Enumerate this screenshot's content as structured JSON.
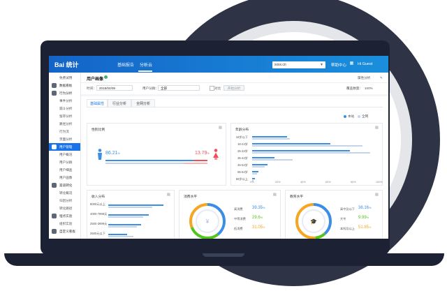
{
  "topbar": {
    "logo": "Bai 统计",
    "nav": [
      "基础报告",
      "分析云"
    ],
    "site_select": "xxxx.cn",
    "help": "帮助中心",
    "user": "Hi Guest"
  },
  "sidebar": {
    "items": [
      {
        "label": "免费试用",
        "group": false
      },
      {
        "label": "数据看板",
        "group": true
      },
      {
        "label": "行为分析",
        "group": true
      },
      {
        "label": "事件分析",
        "group": false
      },
      {
        "label": "漏斗分析",
        "group": false
      },
      {
        "label": "留存分析",
        "group": false
      },
      {
        "label": "路径分析",
        "group": false
      },
      {
        "label": "行为流",
        "group": false
      },
      {
        "label": "页面分析",
        "group": false
      },
      {
        "label": "用户管理",
        "group": true,
        "active": true
      },
      {
        "label": "用户概况",
        "group": false
      },
      {
        "label": "用户分群",
        "group": false
      },
      {
        "label": "用户细查",
        "group": false
      },
      {
        "label": "用户画像",
        "group": false
      },
      {
        "label": "渠道转化",
        "group": true
      },
      {
        "label": "转化概况",
        "group": false
      },
      {
        "label": "归因分析",
        "group": false
      },
      {
        "label": "转化路径",
        "group": false
      },
      {
        "label": "埋点实验",
        "group": true
      },
      {
        "label": "组织实验",
        "group": false
      },
      {
        "label": "自定义看板",
        "group": true
      }
    ]
  },
  "header": {
    "title": "用户画像",
    "link_export": "属性分析"
  },
  "filters": {
    "time_label": "时间：",
    "time_value": "2018/04/09",
    "attr_label": "用户分群：",
    "attr_value": "全部",
    "compare_label": "对比",
    "compare_btn": "开始分析",
    "coverage_label": "覆盖数量：",
    "coverage_value": "100%"
  },
  "tabs": [
    "基础属性",
    "行业分析",
    "全网分析"
  ],
  "legend": [
    "本站",
    "全网"
  ],
  "colors": {
    "primary": "#1a73e8",
    "site": "#3a8ee6",
    "network": "#c6d4ea",
    "female": "#f0505a",
    "green": "#52c41a",
    "orange": "#f5a623"
  },
  "gender": {
    "title": "性别比例",
    "male_pct": "86.21",
    "female_pct": "13.79",
    "unit": "%"
  },
  "age": {
    "title": "年龄分布",
    "labels": [
      "18岁以下",
      "18-24岁",
      "25-34岁",
      "35-44岁",
      "45-54岁",
      "55-64岁",
      "65岁以上"
    ],
    "site": [
      0.28,
      0.62,
      0.78,
      0.18,
      0.12,
      0.05,
      0.02
    ],
    "network": [
      0.3,
      0.88,
      0.94,
      0.32,
      0.1,
      0.04,
      0.01
    ],
    "ticks": [
      "0%",
      "20%",
      "40%",
      "60%",
      "80%",
      "100%"
    ]
  },
  "income": {
    "title": "收入分布",
    "labels": [
      "8000元以上",
      "4000-7999元",
      "2500-3999元",
      "2500元以下"
    ],
    "site": [
      0.88,
      0.64,
      0.52,
      0.3
    ],
    "network": [
      0.7,
      0.55,
      0.45,
      0.4
    ]
  },
  "consumption": {
    "title": "消费水平",
    "items": [
      {
        "label": "高消费",
        "value": "39.35",
        "color": "#3a8ee6"
      },
      {
        "label": "中等消费",
        "value": "29.6",
        "color": "#52c41a"
      },
      {
        "label": "低消费",
        "value": "31.05",
        "color": "#f5a623"
      }
    ],
    "unit": "%"
  },
  "education": {
    "title": "教育水平",
    "items": [
      {
        "label": "高中及以下",
        "value": "38.16",
        "color": "#3a8ee6"
      },
      {
        "label": "大专",
        "value": "9.99",
        "color": "#52c41a"
      },
      {
        "label": "本科及以上",
        "value": "51.85",
        "color": "#f5a623"
      }
    ],
    "unit": "%"
  }
}
